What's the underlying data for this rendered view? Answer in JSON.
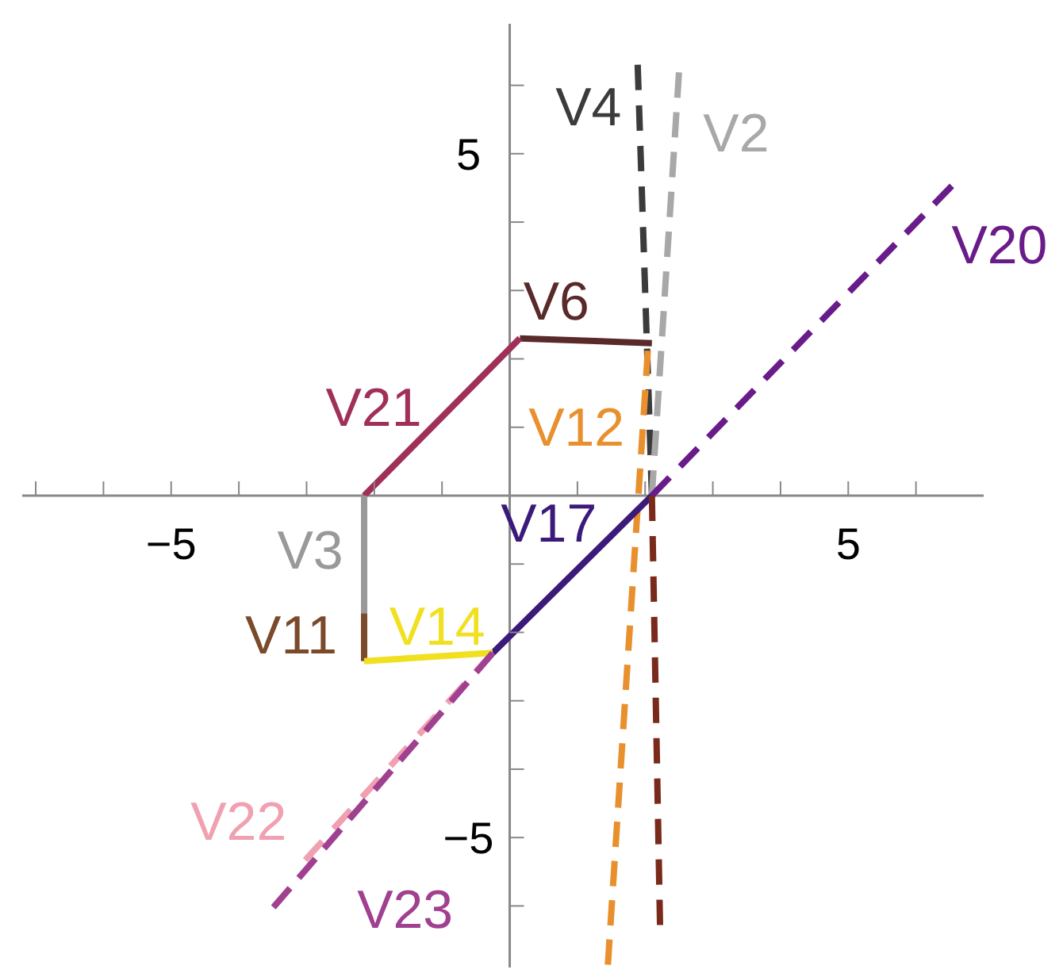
{
  "chart_data": {
    "type": "line",
    "marker": "none",
    "xlim": [
      -7.2,
      7
    ],
    "ylim": [
      -6.9,
      6.9
    ],
    "xticks": [
      {
        "value": -7,
        "label": null
      },
      {
        "value": -6,
        "label": null
      },
      -5,
      {
        "value": -4,
        "label": null
      },
      {
        "value": -3,
        "label": null
      },
      {
        "value": -2,
        "label": null
      },
      {
        "value": -1,
        "label": null
      },
      {
        "value": 1,
        "label": null
      },
      {
        "value": 2,
        "label": null
      },
      {
        "value": 3,
        "label": null
      },
      {
        "value": 4,
        "label": null
      },
      5,
      {
        "value": 6,
        "label": null
      }
    ],
    "yticks": [
      {
        "value": -6,
        "label": null
      },
      -5,
      {
        "value": -4,
        "label": null
      },
      {
        "value": -3,
        "label": null
      },
      {
        "value": -2,
        "label": null
      },
      {
        "value": -1,
        "label": null
      },
      {
        "value": 1,
        "label": null
      },
      {
        "value": 2,
        "label": null
      },
      {
        "value": 3,
        "label": null
      },
      {
        "value": 4,
        "label": null
      },
      5,
      {
        "value": 6,
        "label": null
      }
    ],
    "series": [
      {
        "name": "V4",
        "color": "#3b3b3b",
        "line_style": "dashed",
        "x": [
          2.1,
          1.89
        ],
        "values": [
          0,
          6.3
        ]
      },
      {
        "name": "V2",
        "color": "#a8a8a8",
        "line_style": "dashed",
        "x": [
          2.1,
          2.5
        ],
        "values": [
          0,
          6.19
        ]
      },
      {
        "name": "V20",
        "color": "#6a1b8a",
        "line_style": "dashed",
        "x": [
          2.1,
          6.53
        ],
        "values": [
          0,
          4.53
        ]
      },
      {
        "name": "V6",
        "color": "#5a2a2a",
        "line_style": "solid",
        "x": [
          2.1,
          0.15
        ],
        "values": [
          2.23,
          2.3
        ]
      },
      {
        "name": "V21",
        "color": "#a0305a",
        "line_style": "solid",
        "x": [
          0.15,
          -2.15
        ],
        "values": [
          2.3,
          0
        ]
      },
      {
        "name": "V12",
        "color": "#e8902e",
        "line_style": "dashed",
        "x": [
          1.45,
          2.04
        ],
        "values": [
          -6.86,
          2.12
        ]
      },
      {
        "name": "V17",
        "color": "#3b1a7a",
        "line_style": "solid",
        "x": [
          -0.25,
          2.1
        ],
        "values": [
          -2.3,
          0
        ]
      },
      {
        "name": "V3",
        "color": "#999999",
        "line_style": "solid",
        "x": [
          -2.15,
          -2.15
        ],
        "values": [
          0,
          -1.72
        ]
      },
      {
        "name": "V11",
        "color": "#7a4a2a",
        "line_style": "solid",
        "x": [
          -2.15,
          -2.15
        ],
        "values": [
          -1.72,
          -2.42
        ]
      },
      {
        "name": "V14",
        "color": "#f0e020",
        "line_style": "solid",
        "x": [
          -2.15,
          -0.25
        ],
        "values": [
          -2.42,
          -2.3
        ]
      },
      {
        "name": "V22",
        "color": "#f0a0b0",
        "line_style": "dashed",
        "x": [
          -0.25,
          -3.02
        ],
        "values": [
          -2.3,
          -5.33
        ]
      },
      {
        "name": "V23",
        "color": "#a04090",
        "line_style": "dashed",
        "x": [
          -0.25,
          -3.49
        ],
        "values": [
          -2.3,
          -6.02
        ]
      },
      {
        "color": "#7a2a1a",
        "line_style": "dashed",
        "x": [
          2.1,
          2.22
        ],
        "values": [
          0,
          -6.28
        ]
      }
    ]
  }
}
